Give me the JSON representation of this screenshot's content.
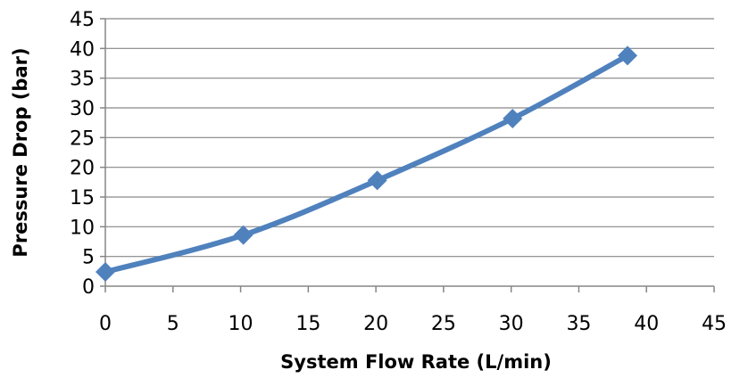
{
  "chart_data": {
    "type": "line",
    "title": "",
    "xlabel": "System Flow Rate (L/min)",
    "ylabel": "Pressure Drop (bar)",
    "xlim": [
      0,
      45
    ],
    "ylim": [
      0,
      45
    ],
    "x_ticks": [
      0,
      5,
      10,
      15,
      20,
      25,
      30,
      35,
      40,
      45
    ],
    "y_ticks": [
      0,
      5,
      10,
      15,
      20,
      25,
      30,
      35,
      40,
      45
    ],
    "grid": "horizontal",
    "legend": "none",
    "smooth": true,
    "marker": "diamond",
    "series": [
      {
        "x": [
          0,
          10.2,
          20.1,
          30.1,
          38.6
        ],
        "y": [
          2.4,
          8.6,
          17.8,
          28.2,
          38.8
        ],
        "color": "#4f81bd"
      }
    ]
  }
}
